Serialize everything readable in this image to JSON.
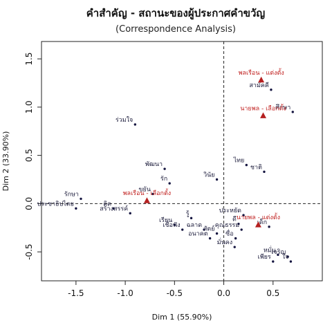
{
  "chart_data": {
    "type": "scatter",
    "title": "คำสำคัญ - สถานะของผู้ประกาศคำขวัญ",
    "subtitle": "(Correspondence Analysis)",
    "xlabel": "Dim 1 (55.90%)",
    "ylabel": "Dim 2 (33.90%)",
    "xlim": [
      -1.85,
      1.0
    ],
    "ylim": [
      -0.8,
      1.68
    ],
    "xticks": [
      -1.5,
      -1.0,
      -0.5,
      0.0,
      0.5
    ],
    "yticks": [
      -0.5,
      0.0,
      0.5,
      1.0,
      1.5
    ],
    "xtick_labels": [
      "-1.5",
      "-1.0",
      "-0.5",
      "0.0",
      "0.5"
    ],
    "ytick_labels": [
      "-0.5",
      "0.0",
      "0.5",
      "1.0",
      "1.5"
    ],
    "grid": false,
    "reference_lines": [
      0,
      0
    ],
    "colors": {
      "words": "#151540",
      "groups": "#b52020"
    },
    "series": [
      {
        "marker": "dot",
        "points": [
          {
            "label": "สามัคคี",
            "x": 0.48,
            "y": 1.18
          },
          {
            "label": "ศึกษา",
            "x": 0.7,
            "y": 0.95
          },
          {
            "label": "ร่วมใจ",
            "x": -0.9,
            "y": 0.82
          },
          {
            "label": "ไทย",
            "x": 0.23,
            "y": 0.4
          },
          {
            "label": "ชาติ",
            "x": 0.41,
            "y": 0.33
          },
          {
            "label": "พัฒนา",
            "x": -0.6,
            "y": 0.36
          },
          {
            "label": "วินัย",
            "x": -0.07,
            "y": 0.25
          },
          {
            "label": "รัก",
            "x": -0.55,
            "y": 0.21
          },
          {
            "label": "ขยัน",
            "x": -0.72,
            "y": 0.1
          },
          {
            "label": "รักษา",
            "x": -1.45,
            "y": 0.05
          },
          {
            "label": "ประชาธิปไตย",
            "x": -1.5,
            "y": -0.05
          },
          {
            "label": "คิด",
            "x": -1.12,
            "y": -0.05
          },
          {
            "label": "สร้างสรรค์",
            "x": -0.95,
            "y": -0.1
          },
          {
            "label": "รู้",
            "x": -0.33,
            "y": -0.15
          },
          {
            "label": "ประหยัด",
            "x": 0.2,
            "y": -0.12
          },
          {
            "label": "ดี",
            "x": 0.15,
            "y": -0.21
          },
          {
            "label": "เรียน",
            "x": -0.5,
            "y": -0.22
          },
          {
            "label": "เชื่อฟัง",
            "x": -0.42,
            "y": -0.27
          },
          {
            "label": "ฉลาด",
            "x": -0.2,
            "y": -0.27
          },
          {
            "label": "คุณธรรม",
            "x": 0.18,
            "y": -0.27
          },
          {
            "label": "สัตย์",
            "x": -0.07,
            "y": -0.31
          },
          {
            "label": "อนาคต",
            "x": -0.14,
            "y": -0.36
          },
          {
            "label": "เด็ก",
            "x": 0.46,
            "y": -0.24
          },
          {
            "label": "ซื่อ",
            "x": 0.12,
            "y": -0.36
          },
          {
            "label": "มั่นคง",
            "x": 0.11,
            "y": -0.45
          },
          {
            "label": "หมั่น",
            "x": 0.55,
            "y": -0.53
          },
          {
            "label": "เจริญ",
            "x": 0.65,
            "y": -0.55
          },
          {
            "label": "เพียร",
            "x": 0.5,
            "y": -0.6
          },
          {
            "label": "ใจ",
            "x": 0.68,
            "y": -0.6
          }
        ]
      },
      {
        "marker": "triangle",
        "points": [
          {
            "label": "พลเรือน - แต่งตั้ง",
            "x": 0.38,
            "y": 1.28
          },
          {
            "label": "นายพล - เลือกตั้ง",
            "x": 0.4,
            "y": 0.91
          },
          {
            "label": "พลเรือน - เลือกตั้ง",
            "x": -0.78,
            "y": 0.03
          },
          {
            "label": "นายพล - แต่งตั้ง",
            "x": 0.35,
            "y": -0.22
          }
        ]
      }
    ]
  }
}
